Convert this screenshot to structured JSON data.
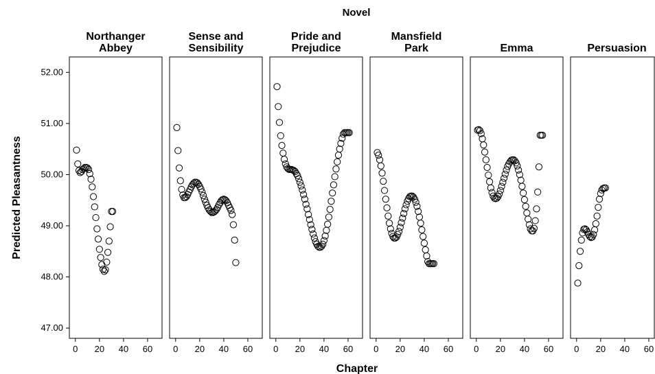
{
  "chart_data": {
    "type": "scatter",
    "title": "Novel",
    "xlabel": "Chapter",
    "ylabel": "Predicted Pleasantness",
    "ylim": [
      46.8,
      52.3
    ],
    "xlim": [
      -5,
      72
    ],
    "yticks": [
      "47.00",
      "48.00",
      "49.00",
      "50.00",
      "51.00",
      "52.00"
    ],
    "xticks": [
      "0",
      "20",
      "40",
      "60"
    ],
    "marker": "open-circle",
    "color": "#000000",
    "panels": [
      {
        "title_lines": [
          "Northanger",
          "Abbey"
        ],
        "x": [
          1,
          2,
          3,
          4,
          5,
          6,
          7,
          8,
          9,
          10,
          11,
          12,
          13,
          14,
          15,
          16,
          17,
          18,
          19,
          20,
          21,
          22,
          23,
          24,
          25,
          26,
          27,
          28,
          29,
          30,
          31
        ],
        "y": [
          50.48,
          50.21,
          50.08,
          50.04,
          50.06,
          50.1,
          50.12,
          50.14,
          50.14,
          50.13,
          50.1,
          50.02,
          49.91,
          49.76,
          49.57,
          49.37,
          49.16,
          48.94,
          48.74,
          48.54,
          48.38,
          48.24,
          48.15,
          48.11,
          48.14,
          48.29,
          48.48,
          48.7,
          48.98,
          49.28,
          49.28
        ]
      },
      {
        "title_lines": [
          "Sense and",
          "Sensibility"
        ],
        "x": [
          1,
          2,
          3,
          4,
          5,
          6,
          7,
          8,
          9,
          10,
          11,
          12,
          13,
          14,
          15,
          16,
          17,
          18,
          19,
          20,
          21,
          22,
          23,
          24,
          25,
          26,
          27,
          28,
          29,
          30,
          31,
          32,
          33,
          34,
          35,
          36,
          37,
          38,
          39,
          40,
          41,
          42,
          43,
          44,
          45,
          46,
          47,
          48,
          49,
          50
        ],
        "y": [
          50.92,
          50.47,
          50.13,
          49.88,
          49.71,
          49.6,
          49.55,
          49.55,
          49.57,
          49.61,
          49.66,
          49.71,
          49.76,
          49.8,
          49.83,
          49.85,
          49.85,
          49.84,
          49.81,
          49.77,
          49.72,
          49.66,
          49.59,
          49.52,
          49.46,
          49.4,
          49.35,
          49.31,
          49.28,
          49.26,
          49.26,
          49.27,
          49.29,
          49.32,
          49.36,
          49.41,
          49.45,
          49.49,
          49.51,
          49.52,
          49.51,
          49.49,
          49.45,
          49.4,
          49.35,
          49.3,
          49.22,
          49.02,
          48.72,
          48.28
        ]
      },
      {
        "title_lines": [
          "Pride and",
          "Prejudice"
        ],
        "x": [
          1,
          2,
          3,
          4,
          5,
          6,
          7,
          8,
          9,
          10,
          11,
          12,
          13,
          14,
          15,
          16,
          17,
          18,
          19,
          20,
          21,
          22,
          23,
          24,
          25,
          26,
          27,
          28,
          29,
          30,
          31,
          32,
          33,
          34,
          35,
          36,
          37,
          38,
          39,
          40,
          41,
          42,
          43,
          44,
          45,
          46,
          47,
          48,
          49,
          50,
          51,
          52,
          53,
          54,
          55,
          56,
          57,
          58,
          59,
          60,
          61
        ],
        "y": [
          51.72,
          51.33,
          51.02,
          50.76,
          50.57,
          50.42,
          50.3,
          50.21,
          50.15,
          50.12,
          50.1,
          50.1,
          50.1,
          50.09,
          50.08,
          50.06,
          50.02,
          49.98,
          49.92,
          49.85,
          49.78,
          49.7,
          49.61,
          49.52,
          49.42,
          49.33,
          49.22,
          49.12,
          49.02,
          48.93,
          48.84,
          48.76,
          48.69,
          48.64,
          48.6,
          48.58,
          48.58,
          48.6,
          48.64,
          48.71,
          48.8,
          48.91,
          49.03,
          49.17,
          49.32,
          49.48,
          49.64,
          49.8,
          49.96,
          50.11,
          50.25,
          50.38,
          50.5,
          50.61,
          50.71,
          50.79,
          50.82,
          50.82,
          50.82,
          50.82,
          50.82
        ]
      },
      {
        "title_lines": [
          "Mansfield",
          "Park"
        ],
        "x": [
          1,
          2,
          3,
          4,
          5,
          6,
          7,
          8,
          9,
          10,
          11,
          12,
          13,
          14,
          15,
          16,
          17,
          18,
          19,
          20,
          21,
          22,
          23,
          24,
          25,
          26,
          27,
          28,
          29,
          30,
          31,
          32,
          33,
          34,
          35,
          36,
          37,
          38,
          39,
          40,
          41,
          42,
          43,
          44,
          45,
          46,
          47,
          48
        ],
        "y": [
          50.43,
          50.38,
          50.29,
          50.17,
          50.03,
          49.87,
          49.69,
          49.52,
          49.35,
          49.19,
          49.05,
          48.94,
          48.85,
          48.79,
          48.76,
          48.76,
          48.78,
          48.83,
          48.89,
          48.97,
          49.06,
          49.15,
          49.24,
          49.33,
          49.41,
          49.48,
          49.53,
          49.57,
          49.58,
          49.58,
          49.56,
          49.52,
          49.46,
          49.38,
          49.28,
          49.17,
          49.05,
          48.92,
          48.79,
          48.66,
          48.53,
          48.41,
          48.3,
          48.26,
          48.26,
          48.26,
          48.26,
          48.26
        ]
      },
      {
        "title_lines": [
          "Emma"
        ],
        "x": [
          1,
          2,
          3,
          4,
          5,
          6,
          7,
          8,
          9,
          10,
          11,
          12,
          13,
          14,
          15,
          16,
          17,
          18,
          19,
          20,
          21,
          22,
          23,
          24,
          25,
          26,
          27,
          28,
          29,
          30,
          31,
          32,
          33,
          34,
          35,
          36,
          37,
          38,
          39,
          40,
          41,
          42,
          43,
          44,
          45,
          46,
          47,
          48,
          49,
          50,
          51,
          52,
          53,
          54,
          55
        ],
        "y": [
          50.87,
          50.88,
          50.86,
          50.8,
          50.7,
          50.58,
          50.44,
          50.29,
          50.14,
          49.99,
          49.86,
          49.74,
          49.65,
          49.58,
          49.54,
          49.53,
          49.54,
          49.57,
          49.62,
          49.69,
          49.77,
          49.85,
          49.93,
          50.01,
          50.09,
          50.16,
          50.21,
          50.25,
          50.28,
          50.29,
          50.29,
          50.27,
          50.23,
          50.17,
          50.09,
          50.0,
          49.89,
          49.77,
          49.64,
          49.51,
          49.38,
          49.25,
          49.13,
          49.02,
          48.94,
          48.9,
          48.9,
          48.95,
          49.1,
          49.33,
          49.66,
          50.15,
          50.77,
          50.77,
          50.77
        ]
      },
      {
        "title_lines": [
          "Persuasion"
        ],
        "x": [
          1,
          2,
          3,
          4,
          5,
          6,
          7,
          8,
          9,
          10,
          11,
          12,
          13,
          14,
          15,
          16,
          17,
          18,
          19,
          20,
          21,
          22,
          23,
          24
        ],
        "y": [
          47.88,
          48.22,
          48.5,
          48.72,
          48.86,
          48.93,
          48.94,
          48.92,
          48.88,
          48.83,
          48.79,
          48.77,
          48.78,
          48.83,
          48.92,
          49.04,
          49.19,
          49.36,
          49.52,
          49.63,
          49.7,
          49.73,
          49.74,
          49.74
        ]
      }
    ]
  }
}
